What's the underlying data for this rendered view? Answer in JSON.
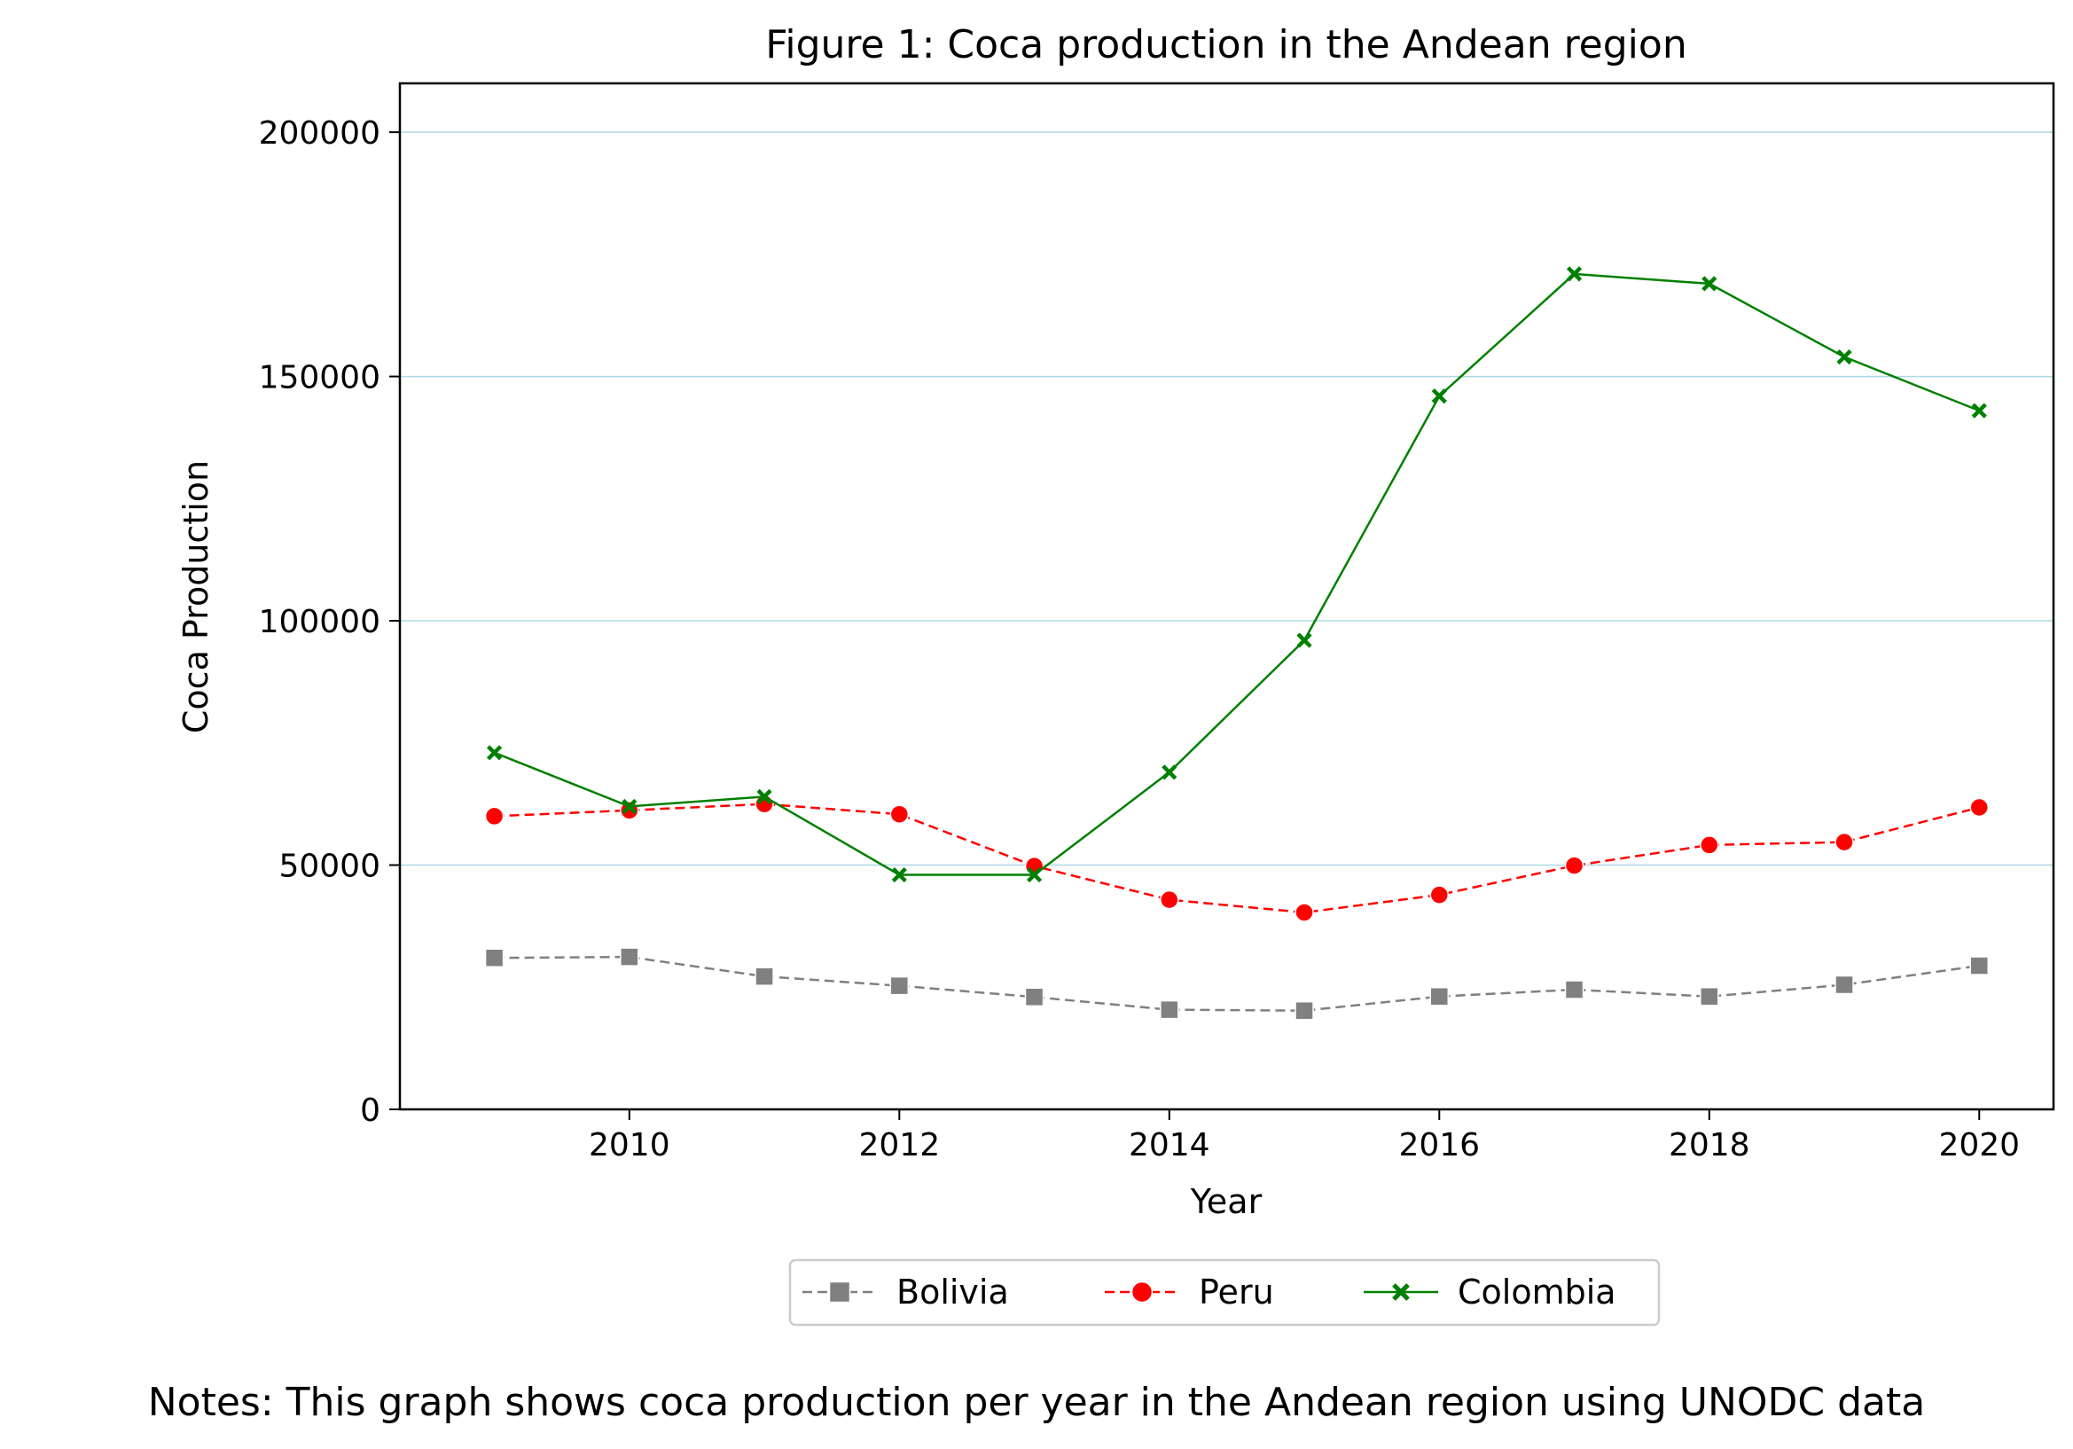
{
  "chart_data": {
    "type": "line",
    "title": "Figure 1: Coca production in the Andean region",
    "xlabel": "Year",
    "ylabel": "Coca Production",
    "xlim": [
      2008.3,
      2020.55
    ],
    "ylim": [
      0,
      210000
    ],
    "xticks": [
      2010,
      2012,
      2014,
      2016,
      2018,
      2020
    ],
    "yticks": [
      0,
      50000,
      100000,
      150000,
      200000
    ],
    "grid": "horizontal",
    "legend_position": "bottom-center",
    "x": [
      2009,
      2010,
      2011,
      2012,
      2013,
      2014,
      2015,
      2016,
      2017,
      2018,
      2019,
      2020
    ],
    "series": [
      {
        "name": "Bolivia",
        "color": "#808080",
        "marker": "square",
        "line_style": "dashed",
        "values": [
          31000,
          31200,
          27200,
          25300,
          23000,
          20400,
          20200,
          23100,
          24500,
          23100,
          25500,
          29400
        ]
      },
      {
        "name": "Peru",
        "color": "#ff0000",
        "marker": "circle",
        "line_style": "dashed",
        "values": [
          60000,
          61200,
          62500,
          60400,
          49800,
          42900,
          40300,
          43900,
          49900,
          54100,
          54700,
          61800
        ]
      },
      {
        "name": "Colombia",
        "color": "#008000",
        "marker": "x",
        "line_style": "solid",
        "values": [
          73000,
          62000,
          64000,
          48000,
          48000,
          69000,
          96000,
          146000,
          171000,
          169000,
          154000,
          143000
        ]
      }
    ],
    "notes": "Notes: This graph shows coca production per year in the Andean region using UNODC data"
  }
}
